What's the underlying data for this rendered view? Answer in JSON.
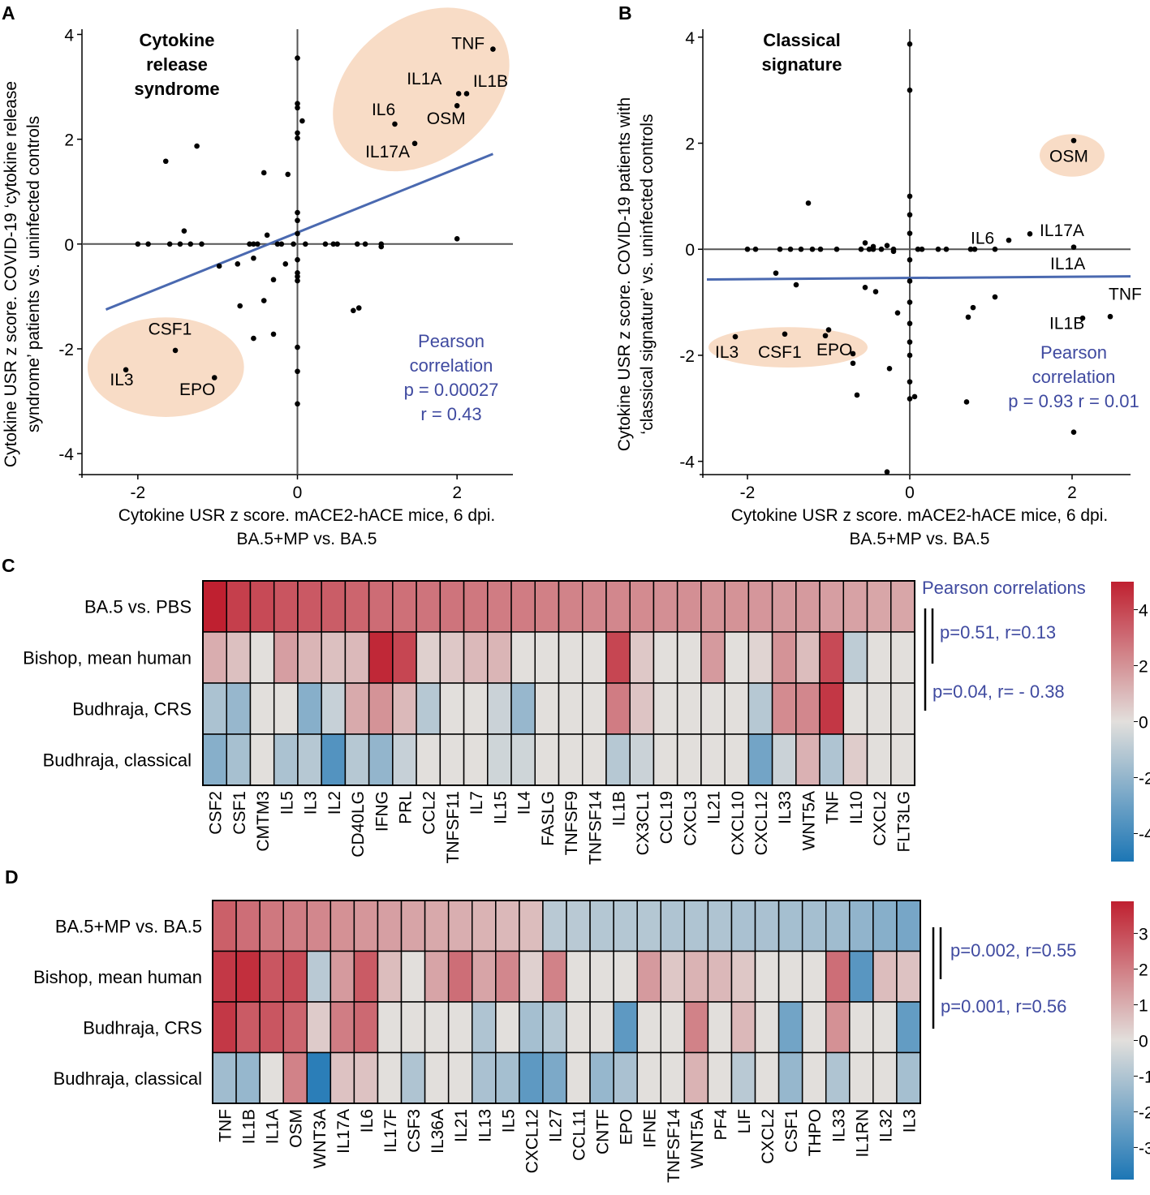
{
  "chart_data": [
    {
      "type": "scatter",
      "panel": "A",
      "title": "Cytokine release syndrome",
      "title_lines": [
        "Cytokine",
        "release",
        "syndrome"
      ],
      "xlabel_lines": [
        "Cytokine USR z score. mACE2-hACE mice, 6 dpi.",
        "BA.5+MP vs. BA.5"
      ],
      "ylabel_lines": [
        "Cytokine USR z score. COVID-19 ‘cytokine release",
        "syndrome’ patients vs. uninfected controls"
      ],
      "xlim": [
        -2.7,
        2.7
      ],
      "ylim": [
        -4.4,
        4.1
      ],
      "xticks": [
        -2,
        0,
        2
      ],
      "yticks": [
        -4,
        -2,
        0,
        2,
        4
      ],
      "annotation_lines": [
        "Pearson",
        "correlation",
        "p = 0.00027",
        "r = 0.43"
      ],
      "pearson_p": 0.00027,
      "pearson_r": 0.43,
      "fit_line": [
        [
          -2.4,
          -1.25
        ],
        [
          2.45,
          1.72
        ]
      ],
      "clusters": [
        {
          "cx": 1.55,
          "cy": 2.95,
          "rx": 1.22,
          "ry": 1.35,
          "rot": -38
        },
        {
          "cx": -1.65,
          "cy": -2.35,
          "rx": 0.98,
          "ry": 0.95,
          "rot": 0
        }
      ],
      "labeled_points": [
        {
          "label": "TNF",
          "x": 2.45,
          "y": 3.72,
          "lx": 1.93,
          "ly": 3.72
        },
        {
          "label": "IL1A",
          "x": 2.02,
          "y": 2.87,
          "lx": 1.37,
          "ly": 3.05
        },
        {
          "label": "IL1B",
          "x": 2.12,
          "y": 2.87,
          "lx": 2.2,
          "ly": 3.0
        },
        {
          "label": "IL6",
          "x": 1.22,
          "y": 2.29,
          "lx": 0.93,
          "ly": 2.46
        },
        {
          "label": "OSM",
          "x": 2.0,
          "y": 2.64,
          "lx": 1.62,
          "ly": 2.29
        },
        {
          "label": "IL17A",
          "x": 1.47,
          "y": 1.92,
          "lx": 0.85,
          "ly": 1.65
        },
        {
          "label": "CSF1",
          "x": -1.53,
          "y": -2.03,
          "lx": -1.87,
          "ly": -1.73
        },
        {
          "label": "IL3",
          "x": -2.15,
          "y": -2.4,
          "lx": -2.35,
          "ly": -2.7
        },
        {
          "label": "EPO",
          "x": -1.04,
          "y": -2.55,
          "lx": -1.48,
          "ly": -2.88
        }
      ],
      "points": [
        [
          -2.0,
          0
        ],
        [
          -1.87,
          0
        ],
        [
          -1.6,
          0
        ],
        [
          -1.47,
          0
        ],
        [
          -1.34,
          0
        ],
        [
          -1.2,
          0
        ],
        [
          -0.6,
          0
        ],
        [
          -0.55,
          0
        ],
        [
          -0.5,
          0
        ],
        [
          -0.25,
          0
        ],
        [
          -0.2,
          0
        ],
        [
          -0.05,
          0
        ],
        [
          0.1,
          0
        ],
        [
          0.35,
          0
        ],
        [
          0.45,
          0
        ],
        [
          0.5,
          0
        ],
        [
          0.75,
          0
        ],
        [
          0.85,
          0
        ],
        [
          1.05,
          0
        ],
        [
          1.05,
          -0.05
        ],
        [
          -1.65,
          1.58
        ],
        [
          -1.26,
          1.87
        ],
        [
          -0.42,
          1.36
        ],
        [
          -0.12,
          1.33
        ],
        [
          -1.42,
          0.25
        ],
        [
          -0.38,
          0.17
        ],
        [
          -0.98,
          -0.42
        ],
        [
          -0.75,
          -0.38
        ],
        [
          -0.55,
          -0.27
        ],
        [
          -0.15,
          -0.38
        ],
        [
          -0.3,
          -0.68
        ],
        [
          -0.72,
          -1.18
        ],
        [
          -0.42,
          -1.08
        ],
        [
          -0.55,
          -1.8
        ],
        [
          -0.3,
          -1.72
        ],
        [
          0.7,
          -1.27
        ],
        [
          0.77,
          -1.22
        ],
        [
          0,
          3.55
        ],
        [
          0,
          2.68
        ],
        [
          0,
          2.6
        ],
        [
          0,
          2.12
        ],
        [
          0,
          2.02
        ],
        [
          0.06,
          2.35
        ],
        [
          0,
          0.6
        ],
        [
          0,
          0.45
        ],
        [
          0,
          0.2
        ],
        [
          0,
          -0.3
        ],
        [
          0,
          -0.55
        ],
        [
          0,
          -0.62
        ],
        [
          0,
          -0.7
        ],
        [
          0,
          -1.97
        ],
        [
          0,
          -2.43
        ],
        [
          0,
          -3.05
        ],
        [
          2.0,
          0.1
        ]
      ]
    },
    {
      "type": "scatter",
      "panel": "B",
      "title": "Classical signature",
      "title_lines": [
        "Classical",
        "signature"
      ],
      "xlabel_lines": [
        "Cytokine USR z score. mACE2-hACE mice, 6 dpi.",
        "BA.5+MP vs. BA.5"
      ],
      "ylabel_lines": [
        "Cytokine USR z score. COVID-19 patients with",
        "‘classical signature’ vs. uninfected controls"
      ],
      "xlim": [
        -2.55,
        2.72
      ],
      "ylim": [
        -4.25,
        4.15
      ],
      "xticks": [
        -2,
        0,
        2
      ],
      "yticks": [
        -4,
        -2,
        0,
        2,
        4
      ],
      "annotation_lines": [
        "Pearson",
        "correlation",
        "p = 0.93 r = 0.01"
      ],
      "pearson_p": 0.93,
      "pearson_r": 0.01,
      "fit_line": [
        [
          -2.5,
          -0.57
        ],
        [
          2.72,
          -0.51
        ]
      ],
      "clusters": [
        {
          "cx": 2.0,
          "cy": 1.77,
          "rx": 0.4,
          "ry": 0.4,
          "rot": 0
        },
        {
          "cx": -1.5,
          "cy": -1.85,
          "rx": 0.98,
          "ry": 0.38,
          "rot": 0
        }
      ],
      "labeled_points": [
        {
          "label": "OSM",
          "x": 2.02,
          "y": 2.05,
          "lx": 1.72,
          "ly": 1.65
        },
        {
          "label": "IL6",
          "x": 1.22,
          "y": 0.17,
          "lx": 0.75,
          "ly": 0.1
        },
        {
          "label": "IL17A",
          "x": 1.48,
          "y": 0.29,
          "lx": 1.6,
          "ly": 0.25
        },
        {
          "label": "IL1A",
          "x": 2.02,
          "y": 0.04,
          "lx": 1.73,
          "ly": -0.38
        },
        {
          "label": "TNF",
          "x": 2.47,
          "y": -1.27,
          "lx": 2.45,
          "ly": -0.95
        },
        {
          "label": "IL1B",
          "x": 2.13,
          "y": -1.3,
          "lx": 1.72,
          "ly": -1.5
        },
        {
          "label": "IL3",
          "x": -2.15,
          "y": -1.65,
          "lx": -2.4,
          "ly": -2.05
        },
        {
          "label": "CSF1",
          "x": -1.54,
          "y": -1.6,
          "lx": -1.87,
          "ly": -2.05
        },
        {
          "label": "EPO",
          "x": -1.04,
          "y": -1.63,
          "lx": -1.15,
          "ly": -2.0
        }
      ],
      "points": [
        [
          -2.0,
          0
        ],
        [
          -1.9,
          0
        ],
        [
          -1.6,
          0
        ],
        [
          -1.47,
          0
        ],
        [
          -1.34,
          0
        ],
        [
          -1.2,
          0
        ],
        [
          -1.1,
          0
        ],
        [
          -0.9,
          0
        ],
        [
          -0.6,
          0
        ],
        [
          -0.5,
          0
        ],
        [
          -0.45,
          0
        ],
        [
          -0.35,
          0
        ],
        [
          -0.2,
          0
        ],
        [
          0.1,
          0
        ],
        [
          0.15,
          0
        ],
        [
          0.35,
          0
        ],
        [
          0.45,
          0
        ],
        [
          0.75,
          0
        ],
        [
          0.8,
          0
        ],
        [
          1.05,
          0
        ],
        [
          -1.25,
          0.87
        ],
        [
          -0.55,
          0.12
        ],
        [
          -0.45,
          0.05
        ],
        [
          -0.28,
          0.07
        ],
        [
          -0.2,
          -0.04
        ],
        [
          -1.65,
          -0.45
        ],
        [
          -1.4,
          -0.67
        ],
        [
          -0.55,
          -0.72
        ],
        [
          -0.42,
          -0.8
        ],
        [
          -0.15,
          -1.2
        ],
        [
          -0.7,
          -1.97
        ],
        [
          -0.7,
          -2.15
        ],
        [
          -0.65,
          -2.75
        ],
        [
          -0.25,
          -2.25
        ],
        [
          -0.28,
          -4.2
        ],
        [
          -1.0,
          -1.52
        ],
        [
          0.72,
          -1.28
        ],
        [
          0.78,
          -1.1
        ],
        [
          1.05,
          -0.9
        ],
        [
          0.7,
          -2.88
        ],
        [
          2.02,
          -3.45
        ],
        [
          0,
          3.87
        ],
        [
          0,
          3.0
        ],
        [
          0,
          1.0
        ],
        [
          0,
          0.65
        ],
        [
          0,
          0.3
        ],
        [
          0,
          -0.2
        ],
        [
          0,
          -0.6
        ],
        [
          0,
          -1.0
        ],
        [
          0,
          -1.4
        ],
        [
          0,
          -1.75
        ],
        [
          0,
          -2.0
        ],
        [
          0,
          -2.5
        ],
        [
          0,
          -2.82
        ],
        [
          0.06,
          -2.78
        ]
      ]
    },
    {
      "type": "heatmap",
      "panel": "C",
      "rows": [
        "BA.5  vs. PBS",
        "Bishop, mean human",
        "Budhraja, CRS",
        "Budhraja, classical"
      ],
      "columns": [
        "CSF2",
        "CSF1",
        "CMTM3",
        "IL5",
        "IL3",
        "IL2",
        "CD40LG",
        "IFNG",
        "PRL",
        "CCL2",
        "TNFSF11",
        "IL7",
        "IL15",
        "IL4",
        "FASLG",
        "TNFSF9",
        "TNFSF14",
        "IL1B",
        "CX3CL1",
        "CCL19",
        "CXCL3",
        "IL21",
        "CXCL10",
        "CXCL12",
        "IL33",
        "WNT5A",
        "TNF",
        "IL10",
        "CXCL2",
        "FLT3LG"
      ],
      "values": [
        [
          5.2,
          4.2,
          3.9,
          3.6,
          3.5,
          3.4,
          3.2,
          3.0,
          2.9,
          2.8,
          2.8,
          2.7,
          2.6,
          2.6,
          2.5,
          2.4,
          2.3,
          2.3,
          2.2,
          2.1,
          2.1,
          2.0,
          2.0,
          1.9,
          1.8,
          1.8,
          1.7,
          1.6,
          1.5,
          1.5
        ],
        [
          1.3,
          0.8,
          0,
          1.7,
          1.1,
          0.8,
          1.0,
          4.8,
          4.0,
          0.4,
          0.6,
          1.0,
          1.1,
          0,
          0,
          0,
          0,
          4.0,
          0.6,
          0,
          0,
          1.8,
          0,
          0.3,
          2.0,
          0.9,
          3.9,
          -0.9,
          0,
          0
        ],
        [
          -1.4,
          -1.9,
          0,
          0,
          -2.3,
          -0.7,
          1.4,
          2.0,
          1.0,
          -1.1,
          0,
          0,
          -0.6,
          -1.9,
          0,
          0,
          0,
          2.6,
          0.7,
          0,
          0,
          0,
          0,
          -1.1,
          2.2,
          2.3,
          4.4,
          0,
          0,
          0
        ],
        [
          -2.3,
          -1.5,
          0,
          -1.4,
          -1.1,
          -3.6,
          -1.1,
          -2.0,
          -0.7,
          0,
          0,
          0,
          -0.5,
          -0.5,
          0,
          0,
          0,
          -1.1,
          -0.6,
          0,
          0,
          0,
          0,
          -2.8,
          -0.6,
          1.2,
          -1.3,
          0.5,
          0,
          0
        ]
      ],
      "vmin": -5,
      "vmax": 5,
      "colorbar_ticks": [
        4,
        2,
        0,
        -2,
        -4
      ],
      "correlations_title": "Pearson correlations",
      "correlations": [
        "p=0.51, r=0.13",
        "p=0.04, r= - 0.38"
      ]
    },
    {
      "type": "heatmap",
      "panel": "D",
      "rows": [
        "BA.5+MP vs. BA.5",
        "Bishop, mean human",
        "Budhraja, CRS",
        "Budhraja, classical"
      ],
      "columns": [
        "TNF",
        "IL1B",
        "IL1A",
        "OSM",
        "WNT3A",
        "IL17A",
        "IL6",
        "IL17F",
        "CSF3",
        "IL36A",
        "IL21",
        "IL13",
        "IL5",
        "CXCL12",
        "IL27",
        "CCL11",
        "CNTF",
        "EPO",
        "IFNE",
        "TNFSF14",
        "WNT5A",
        "PF4",
        "LIF",
        "CXCL2",
        "CSF1",
        "THPO",
        "IL33",
        "IL1RN",
        "IL32",
        "IL3"
      ],
      "values": [
        [
          2.6,
          2.3,
          2.1,
          2.0,
          1.8,
          1.6,
          1.5,
          1.3,
          1.2,
          1.1,
          1.0,
          0.9,
          0.8,
          0.7,
          -0.8,
          -0.8,
          -0.9,
          -0.9,
          -0.9,
          -1.0,
          -1.0,
          -1.0,
          -1.1,
          -1.1,
          -1.2,
          -1.2,
          -1.3,
          -1.6,
          -1.8,
          -2.1
        ],
        [
          3.4,
          3.6,
          2.8,
          3.0,
          -0.8,
          1.4,
          2.7,
          0.7,
          0,
          1.2,
          2.3,
          1.2,
          1.8,
          0.3,
          1.9,
          0,
          0,
          0,
          1.4,
          0.5,
          0.9,
          0.8,
          0.5,
          0,
          0,
          0,
          2.3,
          -2.7,
          0.7,
          0.6
        ],
        [
          3.4,
          2.7,
          2.8,
          2.5,
          0.4,
          2.0,
          2.4,
          0,
          0,
          0,
          0,
          -1.0,
          0,
          -1.2,
          -0.9,
          0,
          0,
          -2.6,
          0,
          0,
          1.9,
          0,
          0.8,
          0,
          -2.2,
          0,
          1.6,
          0,
          0,
          -2.5
        ],
        [
          -1.3,
          -1.5,
          0,
          1.9,
          -3.6,
          0.6,
          0.6,
          0,
          -1.0,
          0,
          0,
          -1.1,
          -1.2,
          -2.6,
          -2.0,
          0,
          -1.5,
          -1.1,
          0,
          0,
          0.9,
          0,
          -0.8,
          0,
          -1.5,
          0,
          -1.0,
          0,
          0,
          -1.2
        ]
      ],
      "vmin": -3.9,
      "vmax": 3.9,
      "colorbar_ticks": [
        3,
        2,
        1,
        0,
        -1,
        -2,
        -3
      ],
      "correlations": [
        "p=0.002, r=0.55",
        "p=0.001, r=0.56"
      ]
    }
  ],
  "colors": {
    "axis": "#555555",
    "points": "#000000",
    "fit_line": "#4a69b0",
    "cluster_fill": "#f8dcc6",
    "annotation": "#3f4aa0",
    "cell_border": "#000000"
  }
}
